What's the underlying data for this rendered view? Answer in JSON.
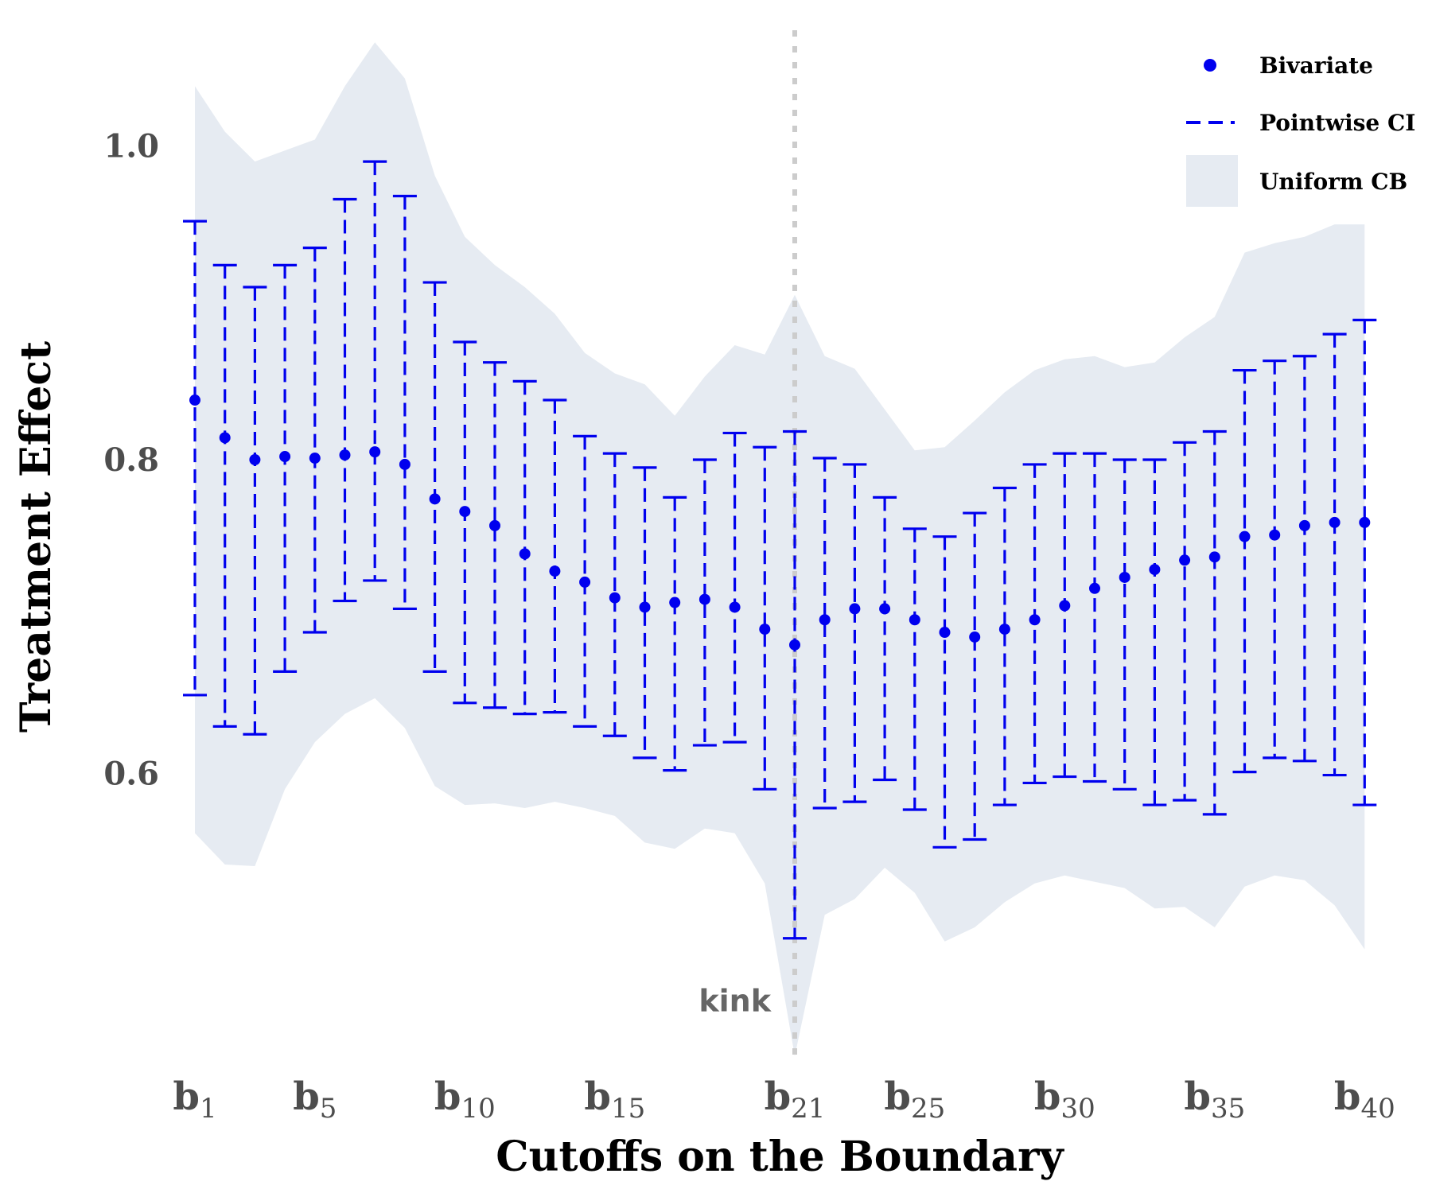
{
  "chart_data": {
    "type": "scatter",
    "xlabel": "Cutoffs on the Boundary",
    "ylabel": "Treatment Effect",
    "x": [
      1,
      2,
      3,
      4,
      5,
      6,
      7,
      8,
      9,
      10,
      11,
      12,
      13,
      14,
      15,
      16,
      17,
      18,
      19,
      20,
      21,
      22,
      23,
      24,
      25,
      26,
      27,
      28,
      29,
      30,
      31,
      32,
      33,
      34,
      35,
      36,
      37,
      38,
      39,
      40
    ],
    "ylim": [
      0.41,
      1.08
    ],
    "y_ticks": [
      0.6,
      0.8,
      1.0
    ],
    "y_tick_labels": [
      "0.6",
      "0.8",
      "1.0"
    ],
    "x_ticks": [
      {
        "x": 1,
        "base": "b",
        "sub": "1"
      },
      {
        "x": 5,
        "base": "b",
        "sub": "5"
      },
      {
        "x": 10,
        "base": "b",
        "sub": "10"
      },
      {
        "x": 15,
        "base": "b",
        "sub": "15"
      },
      {
        "x": 21,
        "base": "b",
        "sub": "21"
      },
      {
        "x": 25,
        "base": "b",
        "sub": "25"
      },
      {
        "x": 30,
        "base": "b",
        "sub": "30"
      },
      {
        "x": 35,
        "base": "b",
        "sub": "35"
      },
      {
        "x": 40,
        "base": "b",
        "sub": "40"
      }
    ],
    "grid": false,
    "legend_position": "top-right",
    "series": [
      {
        "name": "Bivariate",
        "kind": "point",
        "color": "#0000ee",
        "values": [
          0.838,
          0.814,
          0.8,
          0.802,
          0.801,
          0.803,
          0.805,
          0.797,
          0.775,
          0.767,
          0.758,
          0.74,
          0.729,
          0.722,
          0.712,
          0.706,
          0.709,
          0.711,
          0.706,
          0.692,
          0.682,
          0.698,
          0.705,
          0.705,
          0.698,
          0.69,
          0.687,
          0.692,
          0.698,
          0.707,
          0.718,
          0.725,
          0.73,
          0.736,
          0.738,
          0.751,
          0.752,
          0.758,
          0.76,
          0.76
        ]
      },
      {
        "name": "Pointwise CI",
        "kind": "errorbar",
        "color": "#0000ee",
        "lower": [
          0.65,
          0.63,
          0.625,
          0.665,
          0.69,
          0.71,
          0.723,
          0.705,
          0.665,
          0.645,
          0.642,
          0.638,
          0.639,
          0.63,
          0.624,
          0.61,
          0.602,
          0.618,
          0.62,
          0.59,
          0.495,
          0.578,
          0.582,
          0.596,
          0.577,
          0.553,
          0.558,
          0.58,
          0.594,
          0.598,
          0.595,
          0.59,
          0.58,
          0.583,
          0.574,
          0.601,
          0.61,
          0.608,
          0.599,
          0.58
        ],
        "upper": [
          0.952,
          0.924,
          0.91,
          0.924,
          0.935,
          0.966,
          0.99,
          0.968,
          0.913,
          0.875,
          0.862,
          0.85,
          0.838,
          0.815,
          0.804,
          0.795,
          0.776,
          0.8,
          0.817,
          0.808,
          0.818,
          0.801,
          0.797,
          0.776,
          0.756,
          0.751,
          0.766,
          0.782,
          0.797,
          0.804,
          0.804,
          0.8,
          0.8,
          0.811,
          0.818,
          0.857,
          0.863,
          0.866,
          0.88,
          0.889
        ]
      },
      {
        "name": "Uniform CB",
        "kind": "band",
        "color": "#e6ebf2",
        "lower": [
          0.562,
          0.542,
          0.541,
          0.59,
          0.62,
          0.638,
          0.648,
          0.629,
          0.592,
          0.58,
          0.581,
          0.578,
          0.582,
          0.578,
          0.573,
          0.556,
          0.552,
          0.565,
          0.562,
          0.53,
          0.42,
          0.51,
          0.52,
          0.54,
          0.524,
          0.493,
          0.502,
          0.518,
          0.53,
          0.535,
          0.531,
          0.527,
          0.514,
          0.515,
          0.502,
          0.528,
          0.535,
          0.532,
          0.516,
          0.488
        ],
        "upper": [
          1.038,
          1.009,
          0.99,
          0.997,
          1.004,
          1.038,
          1.066,
          1.043,
          0.981,
          0.942,
          0.924,
          0.91,
          0.893,
          0.868,
          0.855,
          0.848,
          0.828,
          0.853,
          0.873,
          0.867,
          0.905,
          0.866,
          0.858,
          0.832,
          0.806,
          0.808,
          0.825,
          0.843,
          0.857,
          0.864,
          0.866,
          0.859,
          0.862,
          0.878,
          0.891,
          0.932,
          0.938,
          0.942,
          0.95,
          0.95
        ]
      }
    ],
    "annotations": [
      {
        "type": "vline",
        "x": 21,
        "style": "dotted",
        "color": "#cccccc"
      },
      {
        "type": "text",
        "text": "kink",
        "x": 21,
        "y": 0.455,
        "color": "#666666"
      }
    ]
  }
}
